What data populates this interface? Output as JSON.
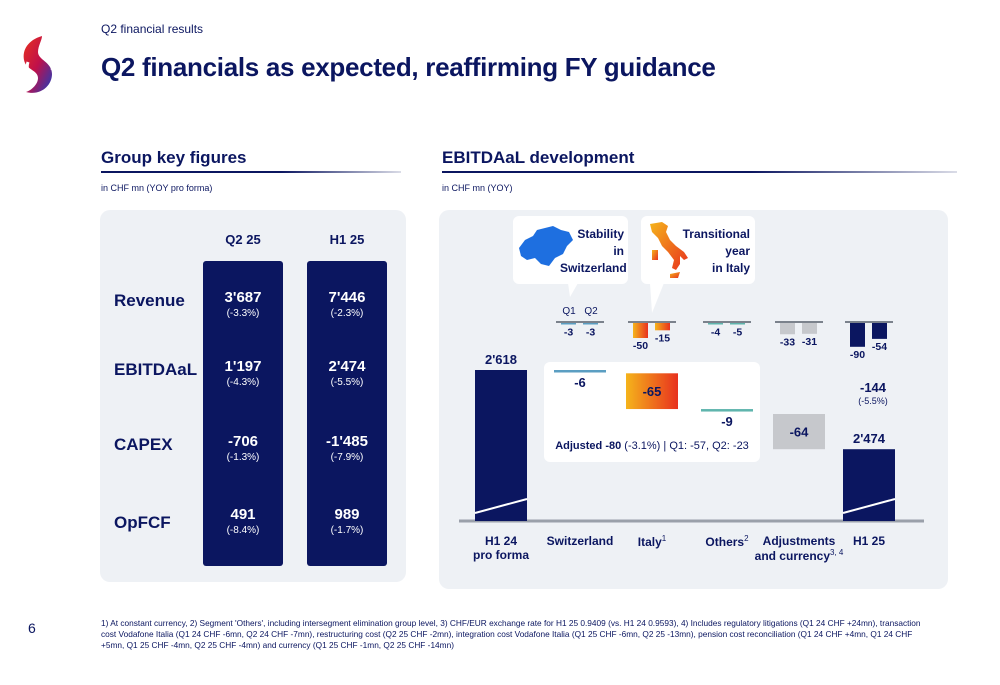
{
  "header": {
    "subtitle": "Q2 financial results",
    "title": "Q2 financials as expected, reaffirming FY guidance"
  },
  "left": {
    "title": "Group key figures",
    "unit": "in CHF mn (YOY pro forma)",
    "columns": [
      "Q2 25",
      "H1 25"
    ],
    "rows": [
      {
        "label": "Revenue",
        "q2": "3'687",
        "q2_pct": "(-3.3%)",
        "h1": "7'446",
        "h1_pct": "(-2.3%)"
      },
      {
        "label": "EBITDAaL",
        "q2": "1'197",
        "q2_pct": "(-4.3%)",
        "h1": "2'474",
        "h1_pct": "(-5.5%)"
      },
      {
        "label": "CAPEX",
        "q2": "-706",
        "q2_pct": "(-1.3%)",
        "h1": "-1'485",
        "h1_pct": "(-7.9%)"
      },
      {
        "label": "OpFCF",
        "q2": "491",
        "q2_pct": "(-8.4%)",
        "h1": "989",
        "h1_pct": "(-1.7%)"
      }
    ]
  },
  "right": {
    "title": "EBITDAaL development",
    "unit": "in CHF mn (YOY)",
    "callout_ch": "Stability in Switzerland",
    "callout_ch_lines": [
      "Stability",
      "in",
      "Switzerland"
    ],
    "callout_it_lines": [
      "Transitional",
      "year",
      "in Italy"
    ],
    "quarter_labels": [
      "Q1",
      "Q2"
    ],
    "adjusted_label": "Adjusted",
    "adjusted_value": "-80",
    "adjusted_pct": "(-3.1%)",
    "adjusted_detail": "| Q1: -57, Q2: -23",
    "h1_delta": "-144",
    "h1_delta_pct": "(-5.5%)"
  },
  "chart_data": {
    "type": "waterfall",
    "title": "EBITDAaL development",
    "unit": "in CHF mn (YOY)",
    "categories": [
      "H1 24 pro forma",
      "Switzerland",
      "Italy",
      "Others",
      "Adjustments and currency",
      "H1 25"
    ],
    "category_label_parts": [
      {
        "text": "H1 24",
        "line2": "pro forma",
        "sup": ""
      },
      {
        "text": "Switzerland",
        "line2": "",
        "sup": ""
      },
      {
        "text": "Italy",
        "line2": "",
        "sup": "1"
      },
      {
        "text": "Others",
        "line2": "",
        "sup": "2"
      },
      {
        "text": "Adjustments",
        "line2": "and currency",
        "sup": "3, 4"
      },
      {
        "text": "H1 25",
        "line2": "",
        "sup": ""
      }
    ],
    "values": [
      2618,
      -6,
      -65,
      -9,
      -64,
      2474
    ],
    "value_labels": [
      "2'618",
      "-6",
      "-65",
      "-9",
      "-64",
      "2'474"
    ],
    "quarterly": [
      {
        "category": "Switzerland",
        "q1": -3,
        "q2": -3
      },
      {
        "category": "Italy",
        "q1": -50,
        "q2": -15
      },
      {
        "category": "Others",
        "q1": -4,
        "q2": -5
      },
      {
        "category": "Adjustments and currency",
        "q1": -33,
        "q2": -31
      },
      {
        "category": "H1 25",
        "q1": -90,
        "q2": -54
      }
    ],
    "colors": {
      "navy": "#0b1660",
      "switzerland": "#5b9ec2",
      "others": "#5fb5ad",
      "adjustments": "#c6c8cc",
      "italy_start": "#f5b41b",
      "italy_end": "#e8311e"
    }
  },
  "footnote": "1) At constant currency, 2) Segment 'Others', including intersegment elimination group level, 3) CHF/EUR exchange rate for H1 25 0.9409 (vs. H1 24 0.9593), 4) Includes regulatory litigations (Q1 24 CHF +24mn), transaction cost Vodafone Italia (Q1 24 CHF -6mn, Q2 24 CHF -7mn), restructuring cost (Q2 25 CHF -2mn), integration cost Vodafone Italia (Q1 25 CHF -6mn, Q2 25 -13mn), pension cost reconciliation (Q1 24 CHF +4mn, Q1 24 CHF +5mn, Q1 25 CHF -4mn, Q2 25 CHF -4mn) and currency (Q1 25 CHF -1mn, Q2 25 CHF -14mn)",
  "page_number": "6"
}
